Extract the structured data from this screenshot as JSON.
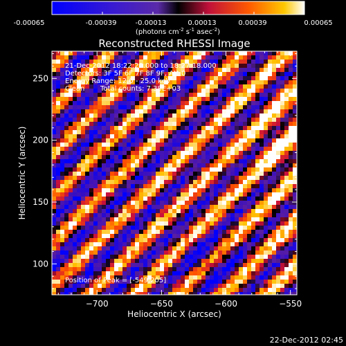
{
  "colorbar": {
    "ticks": [
      "-0.00065",
      "-0.00039",
      "-0.00013",
      "0.00013",
      "0.00039",
      "0.00065"
    ],
    "units_main": "(photons cm",
    "units_sup1": "-2",
    "units_mid1": " s",
    "units_sup2": "-1",
    "units_mid2": " asec",
    "units_sup3": "-2",
    "units_end": ")"
  },
  "chart_data": {
    "type": "heatmap",
    "title": "Reconstructed RHESSI Image",
    "xlabel": "Heliocentric X (arcsec)",
    "ylabel": "Heliocentric Y (arcsec)",
    "xlim": [
      -735,
      -545
    ],
    "ylim": [
      75,
      272
    ],
    "x_ticks": [
      -700,
      -650,
      -600,
      -550
    ],
    "y_ticks": [
      100,
      150,
      200,
      250
    ],
    "x_tick_labels": [
      "−700",
      "−650",
      "−600",
      "−550"
    ],
    "y_tick_labels": [
      "100",
      "150",
      "200",
      "250"
    ],
    "color_range": [
      -0.00065,
      0.00065
    ],
    "colormap": [
      "#0000ff",
      "#3a0fbf",
      "#5a1ea0",
      "#000000",
      "#c8103c",
      "#ff5000",
      "#ffc000",
      "#ffffff"
    ],
    "stripe_angle_deg": 45,
    "peak": [
      -549,
      205
    ],
    "annotations": {
      "line1": "21-Dec-2012 18:22:20.000 to 18:27:18.000",
      "line2": "Detectors: 3F 5F 6F 7F 8F 9F, Att 0",
      "line3": "Energy Range: 12.0 - 25.0 keV",
      "line4a": "Clean",
      "line4b": "Total counts: 7.38E+03",
      "peak_label": "Position of Peak = [-549,205]"
    }
  },
  "footer": {
    "date": "22-Dec-2012 02:45"
  }
}
